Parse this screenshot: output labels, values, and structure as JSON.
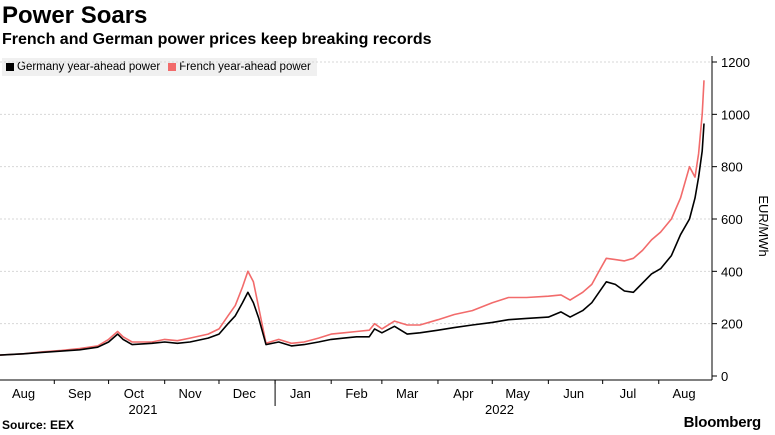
{
  "header": {
    "title": "Power Soars",
    "subtitle": "French and German power prices keep breaking records"
  },
  "footer": {
    "source": "Source: EEX",
    "brand": "Bloomberg"
  },
  "colors": {
    "germany": "#000000",
    "france": "#f26b6b",
    "grid": "#d7d7d7"
  },
  "chart_data": {
    "type": "line",
    "ylabel": "EUR/MWh",
    "ylim": [
      0,
      1200
    ],
    "yticks": [
      0,
      200,
      400,
      600,
      800,
      1000,
      1200
    ],
    "grid": true,
    "legend_position": "top-left",
    "x_start": "2021-08-02",
    "x_end": "2022-08-26",
    "month_ticks": [
      {
        "label": "Aug",
        "date": "2021-08-15"
      },
      {
        "label": "Sep",
        "date": "2021-09-15"
      },
      {
        "label": "Oct",
        "date": "2021-10-15"
      },
      {
        "label": "Nov",
        "date": "2021-11-15"
      },
      {
        "label": "Dec",
        "date": "2021-12-15"
      },
      {
        "label": "Jan",
        "date": "2022-01-15"
      },
      {
        "label": "Feb",
        "date": "2022-02-15"
      },
      {
        "label": "Mar",
        "date": "2022-03-15"
      },
      {
        "label": "Apr",
        "date": "2022-04-15"
      },
      {
        "label": "May",
        "date": "2022-05-15"
      },
      {
        "label": "Jun",
        "date": "2022-06-15"
      },
      {
        "label": "Jul",
        "date": "2022-07-15"
      },
      {
        "label": "Aug",
        "date": "2022-08-15"
      }
    ],
    "year_labels": [
      {
        "label": "2021",
        "date": "2021-10-20"
      },
      {
        "label": "2022",
        "date": "2022-05-05"
      }
    ],
    "series": [
      {
        "name": "Germany year-ahead power",
        "points": [
          [
            "2021-08-02",
            80
          ],
          [
            "2021-08-15",
            85
          ],
          [
            "2021-08-25",
            90
          ],
          [
            "2021-09-05",
            95
          ],
          [
            "2021-09-15",
            100
          ],
          [
            "2021-09-25",
            110
          ],
          [
            "2021-10-01",
            130
          ],
          [
            "2021-10-06",
            160
          ],
          [
            "2021-10-09",
            140
          ],
          [
            "2021-10-14",
            120
          ],
          [
            "2021-10-25",
            125
          ],
          [
            "2021-11-01",
            130
          ],
          [
            "2021-11-08",
            125
          ],
          [
            "2021-11-15",
            130
          ],
          [
            "2021-11-25",
            145
          ],
          [
            "2021-12-01",
            160
          ],
          [
            "2021-12-06",
            200
          ],
          [
            "2021-12-10",
            230
          ],
          [
            "2021-12-14",
            280
          ],
          [
            "2021-12-17",
            320
          ],
          [
            "2021-12-20",
            280
          ],
          [
            "2021-12-23",
            220
          ],
          [
            "2021-12-27",
            120
          ],
          [
            "2022-01-03",
            130
          ],
          [
            "2022-01-10",
            115
          ],
          [
            "2022-01-17",
            120
          ],
          [
            "2022-01-25",
            130
          ],
          [
            "2022-02-01",
            140
          ],
          [
            "2022-02-08",
            145
          ],
          [
            "2022-02-15",
            150
          ],
          [
            "2022-02-22",
            150
          ],
          [
            "2022-02-25",
            180
          ],
          [
            "2022-03-01",
            165
          ],
          [
            "2022-03-08",
            190
          ],
          [
            "2022-03-15",
            160
          ],
          [
            "2022-03-22",
            165
          ],
          [
            "2022-04-01",
            175
          ],
          [
            "2022-04-10",
            185
          ],
          [
            "2022-04-20",
            195
          ],
          [
            "2022-05-01",
            205
          ],
          [
            "2022-05-10",
            215
          ],
          [
            "2022-05-20",
            220
          ],
          [
            "2022-06-01",
            225
          ],
          [
            "2022-06-08",
            245
          ],
          [
            "2022-06-13",
            225
          ],
          [
            "2022-06-20",
            250
          ],
          [
            "2022-06-25",
            280
          ],
          [
            "2022-06-29",
            320
          ],
          [
            "2022-07-03",
            360
          ],
          [
            "2022-07-08",
            350
          ],
          [
            "2022-07-13",
            325
          ],
          [
            "2022-07-18",
            320
          ],
          [
            "2022-07-23",
            355
          ],
          [
            "2022-07-28",
            390
          ],
          [
            "2022-08-02",
            410
          ],
          [
            "2022-08-08",
            460
          ],
          [
            "2022-08-13",
            540
          ],
          [
            "2022-08-18",
            600
          ],
          [
            "2022-08-21",
            680
          ],
          [
            "2022-08-23",
            760
          ],
          [
            "2022-08-25",
            860
          ],
          [
            "2022-08-26",
            965
          ]
        ]
      },
      {
        "name": "French year-ahead power",
        "points": [
          [
            "2021-08-02",
            80
          ],
          [
            "2021-08-15",
            85
          ],
          [
            "2021-08-25",
            92
          ],
          [
            "2021-09-05",
            98
          ],
          [
            "2021-09-15",
            105
          ],
          [
            "2021-09-25",
            115
          ],
          [
            "2021-10-01",
            140
          ],
          [
            "2021-10-06",
            170
          ],
          [
            "2021-10-09",
            150
          ],
          [
            "2021-10-14",
            130
          ],
          [
            "2021-10-25",
            130
          ],
          [
            "2021-11-01",
            140
          ],
          [
            "2021-11-08",
            135
          ],
          [
            "2021-11-15",
            145
          ],
          [
            "2021-11-25",
            160
          ],
          [
            "2021-12-01",
            180
          ],
          [
            "2021-12-06",
            230
          ],
          [
            "2021-12-10",
            270
          ],
          [
            "2021-12-14",
            340
          ],
          [
            "2021-12-17",
            400
          ],
          [
            "2021-12-20",
            360
          ],
          [
            "2021-12-23",
            260
          ],
          [
            "2021-12-27",
            125
          ],
          [
            "2022-01-03",
            140
          ],
          [
            "2022-01-10",
            125
          ],
          [
            "2022-01-17",
            130
          ],
          [
            "2022-01-25",
            145
          ],
          [
            "2022-02-01",
            160
          ],
          [
            "2022-02-08",
            165
          ],
          [
            "2022-02-15",
            170
          ],
          [
            "2022-02-22",
            175
          ],
          [
            "2022-02-25",
            200
          ],
          [
            "2022-03-01",
            180
          ],
          [
            "2022-03-08",
            210
          ],
          [
            "2022-03-15",
            195
          ],
          [
            "2022-03-22",
            195
          ],
          [
            "2022-04-01",
            215
          ],
          [
            "2022-04-10",
            235
          ],
          [
            "2022-04-20",
            250
          ],
          [
            "2022-05-01",
            280
          ],
          [
            "2022-05-10",
            300
          ],
          [
            "2022-05-20",
            300
          ],
          [
            "2022-06-01",
            305
          ],
          [
            "2022-06-08",
            310
          ],
          [
            "2022-06-13",
            290
          ],
          [
            "2022-06-20",
            320
          ],
          [
            "2022-06-25",
            350
          ],
          [
            "2022-06-29",
            400
          ],
          [
            "2022-07-03",
            450
          ],
          [
            "2022-07-08",
            445
          ],
          [
            "2022-07-13",
            440
          ],
          [
            "2022-07-18",
            450
          ],
          [
            "2022-07-23",
            480
          ],
          [
            "2022-07-28",
            520
          ],
          [
            "2022-08-02",
            550
          ],
          [
            "2022-08-08",
            600
          ],
          [
            "2022-08-13",
            680
          ],
          [
            "2022-08-18",
            800
          ],
          [
            "2022-08-21",
            760
          ],
          [
            "2022-08-23",
            850
          ],
          [
            "2022-08-25",
            1000
          ],
          [
            "2022-08-26",
            1130
          ]
        ]
      }
    ]
  }
}
